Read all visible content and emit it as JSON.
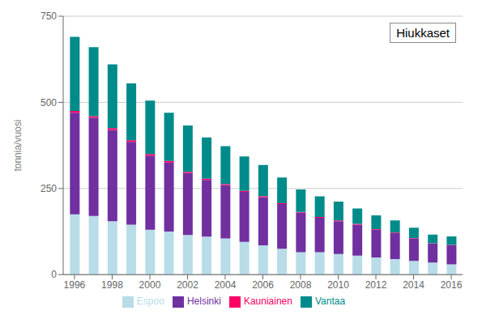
{
  "chart_data": {
    "type": "bar",
    "stacked": true,
    "title": "Hiukkaset",
    "ylabel": "tonnia/vuosi",
    "x": [
      1996,
      1997,
      1998,
      1999,
      2000,
      2001,
      2002,
      2003,
      2004,
      2005,
      2006,
      2007,
      2008,
      2009,
      2010,
      2011,
      2012,
      2013,
      2014,
      2015,
      2016
    ],
    "series": [
      {
        "name": "Espoo",
        "color": "#b8dce8",
        "values": [
          175,
          170,
          155,
          145,
          130,
          125,
          115,
          110,
          105,
          95,
          85,
          75,
          65,
          65,
          60,
          55,
          50,
          45,
          40,
          35,
          30
        ]
      },
      {
        "name": "Helsinki",
        "color": "#7030a0",
        "values": [
          295,
          285,
          265,
          240,
          215,
          200,
          180,
          165,
          155,
          145,
          140,
          130,
          115,
          100,
          95,
          90,
          80,
          75,
          65,
          55,
          55
        ]
      },
      {
        "name": "Kauniainen",
        "color": "#ff0066",
        "values": [
          5,
          5,
          5,
          5,
          5,
          5,
          3,
          3,
          3,
          3,
          3,
          2,
          2,
          2,
          2,
          2,
          2,
          2,
          1,
          1,
          1
        ]
      },
      {
        "name": "Vantaa",
        "color": "#008b8b",
        "values": [
          215,
          200,
          185,
          165,
          155,
          140,
          135,
          120,
          110,
          100,
          90,
          75,
          65,
          60,
          55,
          45,
          40,
          35,
          30,
          25,
          25
        ]
      }
    ],
    "xlim": [
      1995.4,
      2016.6
    ],
    "xticks": [
      1996,
      1998,
      2000,
      2002,
      2004,
      2006,
      2008,
      2010,
      2012,
      2014,
      2016
    ],
    "ylim": [
      0,
      750
    ],
    "yticks": [
      0,
      250,
      500,
      750
    ],
    "grid": true,
    "legend": "bottom"
  }
}
